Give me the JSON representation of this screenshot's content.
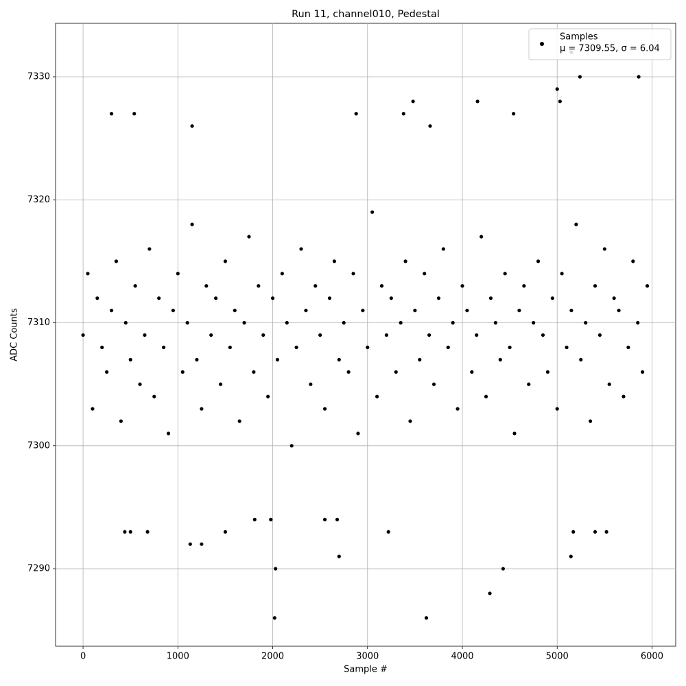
{
  "chart_data": {
    "type": "scatter",
    "title": "Run 11, channel010, Pedestal",
    "x_label": "Sample #",
    "y_label": "ADC Counts",
    "xlim": [
      -290,
      6250
    ],
    "ylim": [
      7283.7,
      7334.35
    ],
    "xticks": [
      0,
      1000,
      2000,
      3000,
      4000,
      5000,
      6000
    ],
    "yticks": [
      7290,
      7300,
      7310,
      7320,
      7330
    ],
    "grid": true,
    "legend": "upper right",
    "annotation": "μ = 7309.55, σ = 6.04",
    "series": [
      {
        "name": "Samples",
        "color": "#000000",
        "x": [
          0,
          50,
          100,
          150,
          200,
          250,
          300,
          350,
          400,
          450,
          500,
          550,
          600,
          650,
          700,
          750,
          800,
          850,
          900,
          950,
          1000,
          1050,
          1100,
          1150,
          1200,
          1250,
          1300,
          1350,
          1400,
          1450,
          1500,
          1550,
          1600,
          1650,
          1700,
          1750,
          1800,
          1850,
          1900,
          1950,
          2000,
          2050,
          2100,
          2150,
          2200,
          2250,
          2300,
          2350,
          2400,
          2450,
          2500,
          2550,
          2600,
          2650,
          2700,
          2750,
          2800,
          2850,
          2900,
          2950,
          3000,
          3050,
          3100,
          3150,
          3200,
          3250,
          3300,
          3350,
          3400,
          3450,
          3500,
          3550,
          3600,
          3650,
          3700,
          3750,
          3800,
          3850,
          3900,
          3950,
          4000,
          4050,
          4100,
          4150,
          4200,
          4250,
          4300,
          4350,
          4400,
          4450,
          4500,
          4550,
          4600,
          4650,
          4700,
          4750,
          4800,
          4850,
          4900,
          4950,
          5000,
          5050,
          5100,
          5150,
          5200,
          5250,
          5300,
          5350,
          5400,
          5450,
          5500,
          5550,
          5600,
          5650,
          5700,
          5750,
          5800,
          5850,
          5900,
          5950,
          300,
          540,
          440,
          500,
          680,
          1130,
          1250,
          1150,
          1500,
          2030,
          2020,
          2700,
          2880,
          3220,
          3380,
          3480,
          3620,
          3660,
          4160,
          4290,
          4430,
          4540,
          5000,
          5030,
          5150,
          5240,
          5145,
          5170,
          5860,
          5400,
          5520,
          1980,
          1810,
          2550,
          2680
        ],
        "values": [
          7309,
          7314,
          7303,
          7312,
          7308,
          7306,
          7311,
          7315,
          7302,
          7310,
          7307,
          7313,
          7305,
          7309,
          7316,
          7304,
          7312,
          7308,
          7301,
          7311,
          7314,
          7306,
          7310,
          7318,
          7307,
          7303,
          7313,
          7309,
          7312,
          7305,
          7315,
          7308,
          7311,
          7302,
          7310,
          7317,
          7306,
          7313,
          7309,
          7304,
          7312,
          7307,
          7314,
          7310,
          7300,
          7308,
          7316,
          7311,
          7305,
          7313,
          7309,
          7303,
          7312,
          7315,
          7307,
          7310,
          7306,
          7314,
          7301,
          7311,
          7308,
          7319,
          7304,
          7313,
          7309,
          7312,
          7306,
          7310,
          7315,
          7302,
          7311,
          7307,
          7314,
          7309,
          7305,
          7312,
          7316,
          7308,
          7310,
          7303,
          7313,
          7311,
          7306,
          7309,
          7317,
          7304,
          7312,
          7310,
          7307,
          7314,
          7308,
          7301,
          7311,
          7313,
          7305,
          7310,
          7315,
          7309,
          7306,
          7312,
          7303,
          7314,
          7308,
          7311,
          7318,
          7307,
          7310,
          7302,
          7313,
          7309,
          7316,
          7305,
          7312,
          7311,
          7304,
          7308,
          7315,
          7310,
          7306,
          7313,
          7327,
          7327,
          7293,
          7293,
          7293,
          7292,
          7292,
          7326,
          7293,
          7290,
          7286,
          7291,
          7327,
          7293,
          7327,
          7328,
          7286,
          7326,
          7328,
          7288,
          7290,
          7327,
          7329,
          7328,
          7332,
          7330,
          7291,
          7293,
          7330,
          7293,
          7293,
          7294,
          7294,
          7294,
          7294
        ]
      }
    ]
  }
}
